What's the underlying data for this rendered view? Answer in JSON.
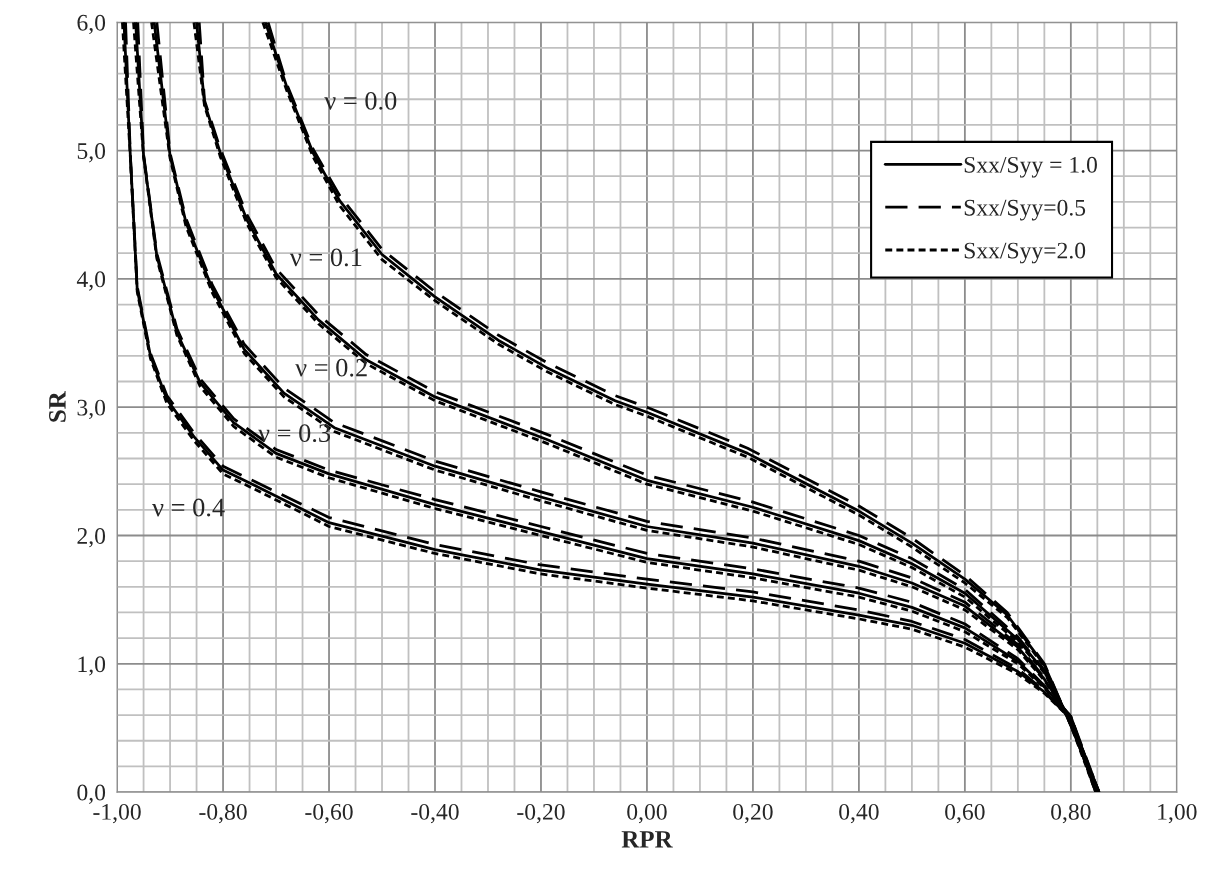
{
  "chart_data": {
    "type": "line",
    "xlabel": "RPR",
    "ylabel": "SR",
    "xlim": [
      -1.0,
      1.0
    ],
    "ylim": [
      0.0,
      6.0
    ],
    "xticks": [
      {
        "value": -1.0,
        "label": "-1,00"
      },
      {
        "value": -0.95,
        "label": null
      },
      {
        "value": -0.9,
        "label": null
      },
      {
        "value": -0.85,
        "label": null
      },
      {
        "value": -0.8,
        "label": "-0,80"
      },
      {
        "value": -0.75,
        "label": null
      },
      {
        "value": -0.7,
        "label": null
      },
      {
        "value": -0.65,
        "label": null
      },
      {
        "value": -0.6,
        "label": "-0,60"
      },
      {
        "value": -0.55,
        "label": null
      },
      {
        "value": -0.5,
        "label": null
      },
      {
        "value": -0.45,
        "label": null
      },
      {
        "value": -0.4,
        "label": "-0,40"
      },
      {
        "value": -0.35,
        "label": null
      },
      {
        "value": -0.3,
        "label": null
      },
      {
        "value": -0.25,
        "label": null
      },
      {
        "value": -0.2,
        "label": "-0,20"
      },
      {
        "value": -0.15,
        "label": null
      },
      {
        "value": -0.1,
        "label": null
      },
      {
        "value": -0.05,
        "label": null
      },
      {
        "value": 0.0,
        "label": "0,00"
      },
      {
        "value": 0.05,
        "label": null
      },
      {
        "value": 0.1,
        "label": null
      },
      {
        "value": 0.15,
        "label": null
      },
      {
        "value": 0.2,
        "label": "0,20"
      },
      {
        "value": 0.25,
        "label": null
      },
      {
        "value": 0.3,
        "label": null
      },
      {
        "value": 0.35,
        "label": null
      },
      {
        "value": 0.4,
        "label": "0,40"
      },
      {
        "value": 0.45,
        "label": null
      },
      {
        "value": 0.5,
        "label": null
      },
      {
        "value": 0.55,
        "label": null
      },
      {
        "value": 0.6,
        "label": "0,60"
      },
      {
        "value": 0.65,
        "label": null
      },
      {
        "value": 0.7,
        "label": null
      },
      {
        "value": 0.75,
        "label": null
      },
      {
        "value": 0.8,
        "label": "0,80"
      },
      {
        "value": 0.85,
        "label": null
      },
      {
        "value": 0.9,
        "label": null
      },
      {
        "value": 0.95,
        "label": null
      },
      {
        "value": 1.0,
        "label": "1,00"
      }
    ],
    "yticks": [
      {
        "value": 0.0,
        "label": "0,0"
      },
      {
        "value": 0.2,
        "label": null
      },
      {
        "value": 0.4,
        "label": null
      },
      {
        "value": 0.6,
        "label": null
      },
      {
        "value": 0.8,
        "label": null
      },
      {
        "value": 1.0,
        "label": "1,0"
      },
      {
        "value": 1.2,
        "label": null
      },
      {
        "value": 1.4,
        "label": null
      },
      {
        "value": 1.6,
        "label": null
      },
      {
        "value": 1.8,
        "label": null
      },
      {
        "value": 2.0,
        "label": "2,0"
      },
      {
        "value": 2.2,
        "label": null
      },
      {
        "value": 2.4,
        "label": null
      },
      {
        "value": 2.6,
        "label": null
      },
      {
        "value": 2.8,
        "label": null
      },
      {
        "value": 3.0,
        "label": "3,0"
      },
      {
        "value": 3.2,
        "label": null
      },
      {
        "value": 3.4,
        "label": null
      },
      {
        "value": 3.6,
        "label": null
      },
      {
        "value": 3.8,
        "label": null
      },
      {
        "value": 4.0,
        "label": "4,0"
      },
      {
        "value": 4.2,
        "label": null
      },
      {
        "value": 4.4,
        "label": null
      },
      {
        "value": 4.6,
        "label": null
      },
      {
        "value": 4.8,
        "label": null
      },
      {
        "value": 5.0,
        "label": "5,0"
      },
      {
        "value": 5.2,
        "label": null
      },
      {
        "value": 5.4,
        "label": null
      },
      {
        "value": 5.6,
        "label": null
      },
      {
        "value": 5.8,
        "label": null
      },
      {
        "value": 6.0,
        "label": "6,0"
      }
    ],
    "grid": true,
    "legend": "top right",
    "marker": "none",
    "series": [
      {
        "name": "Sxx/Syy = 1.0",
        "color": "#000000",
        "line_style": "solid",
        "x": [
          -0.72,
          -0.68,
          -0.63,
          -0.58,
          -0.5,
          -0.4,
          -0.28,
          -0.19,
          -0.06,
          0.0,
          0.19,
          0.4,
          0.5,
          0.6,
          0.68,
          0.75,
          0.8,
          0.85
        ],
        "values": [
          6.0,
          5.5,
          4.98,
          4.61,
          4.19,
          3.86,
          3.52,
          3.31,
          3.05,
          2.96,
          2.64,
          2.19,
          1.94,
          1.66,
          1.38,
          0.99,
          0.52,
          0.0
        ]
      },
      {
        "name": "Sxx/Syy=0.5",
        "color": "#000000",
        "line_style": "dashed",
        "x": [
          -0.715,
          -0.68,
          -0.63,
          -0.58,
          -0.5,
          -0.4,
          -0.28,
          -0.19,
          -0.06,
          0.0,
          0.19,
          0.4,
          0.5,
          0.6,
          0.68,
          0.75,
          0.8,
          0.853
        ],
        "values": [
          6.0,
          5.52,
          5.01,
          4.65,
          4.23,
          3.9,
          3.56,
          3.35,
          3.09,
          3.0,
          2.68,
          2.23,
          1.98,
          1.69,
          1.4,
          1.0,
          0.52,
          0.0
        ]
      },
      {
        "name": "Sxx/Syy=2.0",
        "color": "#000000",
        "line_style": "dotted",
        "x": [
          -0.725,
          -0.68,
          -0.63,
          -0.58,
          -0.5,
          -0.4,
          -0.28,
          -0.19,
          -0.06,
          0.0,
          0.19,
          0.4,
          0.5,
          0.6,
          0.68,
          0.75,
          0.8,
          0.847
        ],
        "values": [
          6.0,
          5.47,
          4.95,
          4.57,
          4.15,
          3.83,
          3.49,
          3.28,
          3.02,
          2.93,
          2.61,
          2.16,
          1.91,
          1.63,
          1.36,
          0.98,
          0.52,
          0.0
        ]
      },
      {
        "color": "#000000",
        "line_style": "solid",
        "x": [
          -0.85,
          -0.835,
          -0.805,
          -0.755,
          -0.7,
          -0.62,
          -0.53,
          -0.4,
          -0.19,
          0.0,
          0.2,
          0.4,
          0.5,
          0.6,
          0.7,
          0.75,
          0.8,
          0.85
        ],
        "values": [
          6.0,
          5.37,
          4.98,
          4.46,
          4.04,
          3.68,
          3.37,
          3.08,
          2.75,
          2.43,
          2.22,
          1.96,
          1.78,
          1.55,
          1.19,
          0.94,
          0.54,
          0.0
        ]
      },
      {
        "color": "#000000",
        "line_style": "dashed",
        "x": [
          -0.845,
          -0.835,
          -0.805,
          -0.755,
          -0.7,
          -0.62,
          -0.53,
          -0.4,
          -0.19,
          0.0,
          0.2,
          0.4,
          0.5,
          0.6,
          0.7,
          0.75,
          0.8,
          0.853
        ],
        "values": [
          6.0,
          5.39,
          5.01,
          4.5,
          4.08,
          3.72,
          3.41,
          3.12,
          2.79,
          2.47,
          2.26,
          2.0,
          1.82,
          1.58,
          1.21,
          0.95,
          0.54,
          0.0
        ]
      },
      {
        "color": "#000000",
        "line_style": "dotted",
        "x": [
          -0.855,
          -0.835,
          -0.805,
          -0.755,
          -0.7,
          -0.62,
          -0.53,
          -0.4,
          -0.19,
          0.0,
          0.2,
          0.4,
          0.5,
          0.6,
          0.7,
          0.75,
          0.8,
          0.847
        ],
        "values": [
          6.0,
          5.35,
          4.95,
          4.43,
          4.01,
          3.65,
          3.34,
          3.05,
          2.72,
          2.4,
          2.19,
          1.93,
          1.75,
          1.52,
          1.17,
          0.93,
          0.54,
          0.0
        ]
      },
      {
        "color": "#000000",
        "line_style": "solid",
        "x": [
          -0.93,
          -0.9,
          -0.87,
          -0.82,
          -0.76,
          -0.685,
          -0.59,
          -0.4,
          -0.2,
          0.0,
          0.2,
          0.4,
          0.5,
          0.6,
          0.7,
          0.75,
          0.8,
          0.85
        ],
        "values": [
          6.0,
          4.96,
          4.44,
          3.92,
          3.45,
          3.11,
          2.84,
          2.54,
          2.3,
          2.07,
          1.94,
          1.76,
          1.63,
          1.45,
          1.13,
          0.88,
          0.57,
          0.0
        ]
      },
      {
        "color": "#000000",
        "line_style": "dashed",
        "x": [
          -0.925,
          -0.9,
          -0.87,
          -0.82,
          -0.76,
          -0.685,
          -0.59,
          -0.4,
          -0.2,
          0.0,
          0.2,
          0.4,
          0.5,
          0.6,
          0.7,
          0.75,
          0.8,
          0.853
        ],
        "values": [
          6.0,
          4.98,
          4.47,
          3.95,
          3.49,
          3.15,
          2.88,
          2.58,
          2.34,
          2.11,
          1.98,
          1.8,
          1.67,
          1.48,
          1.15,
          0.89,
          0.57,
          0.0
        ]
      },
      {
        "color": "#000000",
        "line_style": "dotted",
        "x": [
          -0.935,
          -0.9,
          -0.87,
          -0.82,
          -0.76,
          -0.685,
          -0.59,
          -0.4,
          -0.2,
          0.0,
          0.2,
          0.4,
          0.5,
          0.6,
          0.7,
          0.75,
          0.8,
          0.847
        ],
        "values": [
          6.0,
          4.94,
          4.41,
          3.89,
          3.42,
          3.08,
          2.81,
          2.51,
          2.27,
          2.04,
          1.91,
          1.73,
          1.6,
          1.42,
          1.11,
          0.87,
          0.57,
          0.0
        ]
      },
      {
        "color": "#000000",
        "line_style": "solid",
        "x": [
          -0.965,
          -0.95,
          -0.925,
          -0.887,
          -0.843,
          -0.78,
          -0.7,
          -0.6,
          -0.4,
          -0.2,
          0.0,
          0.2,
          0.4,
          0.5,
          0.6,
          0.7,
          0.75,
          0.8,
          0.85
        ],
        "values": [
          6.0,
          4.96,
          4.18,
          3.58,
          3.19,
          2.88,
          2.64,
          2.48,
          2.24,
          2.03,
          1.82,
          1.7,
          1.55,
          1.44,
          1.28,
          1.02,
          0.82,
          0.59,
          0.0
        ]
      },
      {
        "color": "#000000",
        "line_style": "dashed",
        "x": [
          -0.961,
          -0.95,
          -0.925,
          -0.887,
          -0.843,
          -0.78,
          -0.7,
          -0.6,
          -0.4,
          -0.2,
          0.0,
          0.2,
          0.4,
          0.5,
          0.6,
          0.7,
          0.75,
          0.8,
          0.853
        ],
        "values": [
          6.0,
          4.97,
          4.2,
          3.61,
          3.22,
          2.91,
          2.67,
          2.51,
          2.28,
          2.07,
          1.86,
          1.74,
          1.59,
          1.48,
          1.31,
          1.04,
          0.83,
          0.59,
          0.0
        ]
      },
      {
        "color": "#000000",
        "line_style": "dotted",
        "x": [
          -0.969,
          -0.95,
          -0.925,
          -0.887,
          -0.843,
          -0.78,
          -0.7,
          -0.6,
          -0.4,
          -0.2,
          0.0,
          0.2,
          0.4,
          0.5,
          0.6,
          0.7,
          0.75,
          0.8,
          0.847
        ],
        "values": [
          6.0,
          4.95,
          4.16,
          3.56,
          3.16,
          2.85,
          2.61,
          2.45,
          2.21,
          2.0,
          1.79,
          1.67,
          1.52,
          1.41,
          1.25,
          1.0,
          0.81,
          0.59,
          0.0
        ]
      },
      {
        "color": "#000000",
        "line_style": "solid",
        "x": [
          -0.987,
          -0.975,
          -0.962,
          -0.937,
          -0.906,
          -0.855,
          -0.8,
          -0.74,
          -0.6,
          -0.4,
          -0.2,
          0.0,
          0.2,
          0.4,
          0.5,
          0.6,
          0.7,
          0.75,
          0.8,
          0.85
        ],
        "values": [
          6.0,
          4.96,
          3.92,
          3.4,
          3.06,
          2.77,
          2.51,
          2.39,
          2.1,
          1.89,
          1.73,
          1.62,
          1.52,
          1.38,
          1.3,
          1.16,
          0.94,
          0.78,
          0.57,
          0.0
        ]
      },
      {
        "color": "#000000",
        "line_style": "dashed",
        "x": [
          -0.984,
          -0.975,
          -0.962,
          -0.937,
          -0.906,
          -0.855,
          -0.8,
          -0.74,
          -0.6,
          -0.4,
          -0.2,
          0.0,
          0.2,
          0.4,
          0.5,
          0.6,
          0.7,
          0.75,
          0.8,
          0.853
        ],
        "values": [
          6.0,
          4.97,
          3.94,
          3.42,
          3.09,
          2.8,
          2.54,
          2.42,
          2.14,
          1.93,
          1.77,
          1.66,
          1.56,
          1.42,
          1.33,
          1.19,
          0.96,
          0.79,
          0.57,
          0.0
        ]
      },
      {
        "color": "#000000",
        "line_style": "dotted",
        "x": [
          -0.99,
          -0.975,
          -0.962,
          -0.937,
          -0.906,
          -0.855,
          -0.8,
          -0.74,
          -0.6,
          -0.4,
          -0.2,
          0.0,
          0.2,
          0.4,
          0.5,
          0.6,
          0.7,
          0.75,
          0.8,
          0.847
        ],
        "values": [
          6.0,
          4.95,
          3.9,
          3.38,
          3.03,
          2.74,
          2.48,
          2.36,
          2.07,
          1.86,
          1.7,
          1.59,
          1.49,
          1.35,
          1.27,
          1.13,
          0.92,
          0.77,
          0.57,
          0.0
        ]
      }
    ],
    "annotations": [
      "ν = 0.0",
      "ν = 0.1",
      "ν = 0.2",
      "ν = 0.3",
      "ν = 0.4"
    ]
  }
}
